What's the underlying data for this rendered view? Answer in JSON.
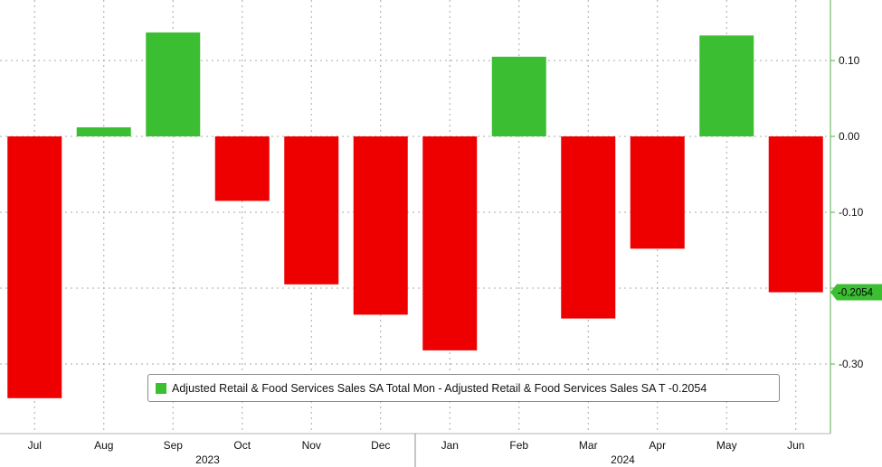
{
  "chart_data": {
    "type": "bar",
    "categories": [
      "Jul",
      "Aug",
      "Sep",
      "Oct",
      "Nov",
      "Dec",
      "Jan",
      "Feb",
      "Mar",
      "Apr",
      "May",
      "Jun"
    ],
    "years": [
      {
        "label": "2023",
        "from": "Jul",
        "to": "Dec"
      },
      {
        "label": "2024",
        "from": "Jan",
        "to": "Jun"
      }
    ],
    "series": [
      {
        "name": "Adjusted Retail & Food Services Sales SA Total Mon - Adjusted Retail & Food Services Sales SA T -0.2054",
        "values": [
          -0.345,
          0.012,
          0.137,
          -0.085,
          -0.195,
          -0.235,
          -0.282,
          0.105,
          -0.24,
          -0.148,
          0.133,
          -0.2054
        ]
      }
    ],
    "yticks": [
      "0.10",
      "0.00",
      "-0.10",
      "-0.20",
      "-0.30"
    ],
    "ylim": [
      -0.39,
      0.18
    ],
    "last_value_label": "-0.2054",
    "positive_color": "#3cbe33",
    "negative_color": "#ee0000",
    "grid": true,
    "legend_position": "bottom-center"
  }
}
